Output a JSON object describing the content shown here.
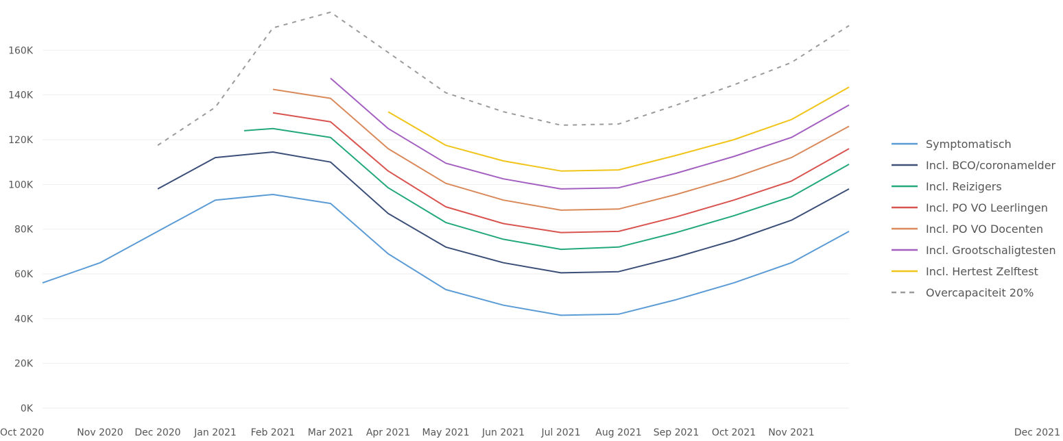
{
  "chart_data": {
    "type": "line",
    "categories": [
      "Oct 2020",
      "Nov 2020",
      "Dec 2020",
      "Jan 2021",
      "Feb 2021",
      "Mar 2021",
      "Apr 2021",
      "May 2021",
      "Jun 2021",
      "Jul 2021",
      "Aug 2021",
      "Sep 2021",
      "Oct 2021",
      "Nov 2021",
      "Dec 2021"
    ],
    "y_ticks": [
      "0K",
      "20K",
      "40K",
      "60K",
      "80K",
      "100K",
      "120K",
      "140K",
      "160K"
    ],
    "ylim": [
      0,
      180000
    ],
    "grid": true,
    "legend_position": "right",
    "series": [
      {
        "name": "Symptomatisch",
        "color": "#5b9bd5",
        "dash": false,
        "x": [
          0,
          1,
          2,
          3,
          4,
          5,
          6,
          7,
          8,
          9,
          10,
          11,
          12,
          13,
          14
        ],
        "values": [
          56000,
          65000,
          79000,
          93000,
          95500,
          91500,
          69000,
          53000,
          46000,
          41500,
          42000,
          48500,
          56000,
          65000,
          79000
        ]
      },
      {
        "name": "Incl. BCO/coronamelder",
        "color": "#3b4e78",
        "dash": false,
        "x": [
          2,
          3,
          4,
          5,
          6,
          7,
          8,
          9,
          10,
          11,
          12,
          13,
          14
        ],
        "values": [
          98000,
          112000,
          114500,
          110000,
          87000,
          72000,
          65000,
          60500,
          61000,
          67500,
          75000,
          84000,
          98000
        ]
      },
      {
        "name": "Incl. Reizigers",
        "color": "#22a87a",
        "dash": false,
        "x": [
          3.5,
          4,
          5,
          6,
          7,
          8,
          9,
          10,
          11,
          12,
          13,
          14
        ],
        "values": [
          124000,
          125000,
          121000,
          98500,
          83000,
          75500,
          71000,
          72000,
          78500,
          86000,
          94500,
          109000
        ]
      },
      {
        "name": "Incl. PO VO Leerlingen",
        "color": "#d9534f",
        "dash": false,
        "x": [
          4,
          5,
          6,
          7,
          8,
          9,
          10,
          11,
          12,
          13,
          14
        ],
        "values": [
          132000,
          128000,
          106000,
          90000,
          82500,
          78500,
          79000,
          85500,
          93000,
          101500,
          116000
        ]
      },
      {
        "name": "Incl. PO VO Docenten",
        "color": "#d9895a",
        "dash": false,
        "x": [
          4,
          5,
          6,
          7,
          8,
          9,
          10,
          11,
          12,
          13,
          14
        ],
        "values": [
          142500,
          138500,
          116000,
          100500,
          93000,
          88500,
          89000,
          95500,
          103000,
          112000,
          126000
        ]
      },
      {
        "name": "Incl. Grootschaligtesten",
        "color": "#a35fc0",
        "dash": false,
        "x": [
          5,
          6,
          7,
          8,
          9,
          10,
          11,
          12,
          13,
          14
        ],
        "values": [
          147500,
          125000,
          109500,
          102500,
          98000,
          98500,
          105000,
          112500,
          121000,
          135500
        ]
      },
      {
        "name": "Incl. Hertest Zelftest",
        "color": "#f0c419",
        "dash": false,
        "x": [
          6,
          7,
          8,
          9,
          10,
          11,
          12,
          13,
          14
        ],
        "values": [
          132500,
          117500,
          110500,
          106000,
          106500,
          113000,
          120000,
          129000,
          143500
        ]
      },
      {
        "name": "Overcapaciteit 20%",
        "color": "#9a9a9a",
        "dash": true,
        "x": [
          2,
          3,
          4,
          5,
          6,
          7,
          8,
          9,
          10,
          11,
          12,
          13,
          14
        ],
        "values": [
          117500,
          134500,
          170000,
          177000,
          159000,
          141000,
          132500,
          126500,
          127000,
          135500,
          144500,
          154500,
          171000
        ]
      }
    ]
  }
}
